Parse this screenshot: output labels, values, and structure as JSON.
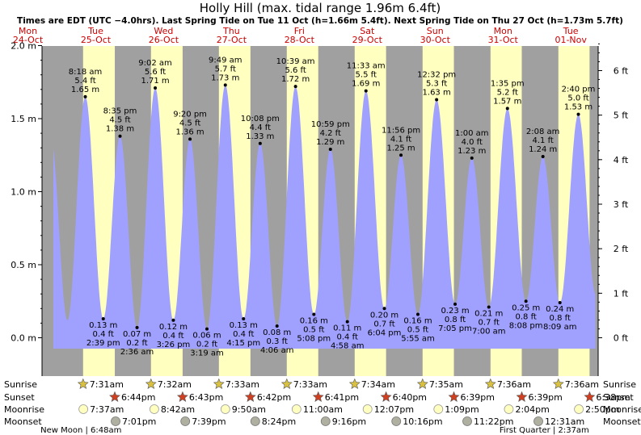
{
  "title": "Holly Hill (max. tidal range 1.96m 6.4ft)",
  "subtitle": "Times are EDT (UTC −4.0hrs). Last Spring Tide on Tue 11 Oct (h=1.66m 5.4ft). Next Spring Tide on Thu 27 Oct (h=1.73m 5.7ft)",
  "colors": {
    "night": "#a0a0a0",
    "day": "#ffffc0",
    "tide": "#a0a0ff",
    "red": "#cc0000"
  },
  "days": [
    {
      "dow": "Mon",
      "date": "24-Oct",
      "start": "2022-10-24T00:00"
    },
    {
      "dow": "Tue",
      "date": "25-Oct",
      "start": "2022-10-25T00:00"
    },
    {
      "dow": "Wed",
      "date": "26-Oct",
      "start": "2022-10-26T00:00"
    },
    {
      "dow": "Thu",
      "date": "27-Oct",
      "start": "2022-10-27T00:00"
    },
    {
      "dow": "Fri",
      "date": "28-Oct",
      "start": "2022-10-28T00:00"
    },
    {
      "dow": "Sat",
      "date": "29-Oct",
      "start": "2022-10-29T00:00"
    },
    {
      "dow": "Sun",
      "date": "30-Oct",
      "start": "2022-10-30T00:00"
    },
    {
      "dow": "Mon",
      "date": "31-Oct",
      "start": "2022-10-31T00:00"
    },
    {
      "dow": "Tue",
      "date": "01-Nov",
      "start": "2022-11-01T00:00"
    }
  ],
  "chart_data": {
    "type": "area",
    "title": "Holly Hill (max. tidal range 1.96m 6.4ft)",
    "xrange": [
      "2022-10-24T17:00",
      "2022-11-01T21:40"
    ],
    "ylim_m": [
      -0.08,
      2.05
    ],
    "y_ticks_m": [
      "0.0 m",
      "0.5 m",
      "1.0 m",
      "1.5 m",
      "2.0 m"
    ],
    "y_ticks_ft": [
      "0 ft",
      "1 ft",
      "2 ft",
      "3 ft",
      "4 ft",
      "5 ft",
      "6 ft"
    ],
    "series": [
      {
        "points": [
          {
            "t": "2022-10-24T20:00",
            "m": 1.38,
            "label": false
          },
          {
            "t": "2022-10-25T02:00",
            "m": 0.12,
            "label": false
          },
          {
            "t": "2022-10-25T08:18",
            "m": 1.65,
            "time": "8:18 am",
            "ft": "5.4 ft",
            "mlabel": "1.65 m"
          },
          {
            "t": "2022-10-25T14:39",
            "m": 0.13,
            "time": "2:39 pm",
            "ft": "0.4 ft",
            "mlabel": "0.13 m"
          },
          {
            "t": "2022-10-25T20:35",
            "m": 1.38,
            "time": "8:35 pm",
            "ft": "4.5 ft",
            "mlabel": "1.38 m"
          },
          {
            "t": "2022-10-26T02:36",
            "m": 0.07,
            "time": "2:36 am",
            "ft": "0.2 ft",
            "mlabel": "0.07 m"
          },
          {
            "t": "2022-10-26T09:02",
            "m": 1.71,
            "time": "9:02 am",
            "ft": "5.6 ft",
            "mlabel": "1.71 m"
          },
          {
            "t": "2022-10-26T15:26",
            "m": 0.12,
            "time": "3:26 pm",
            "ft": "0.4 ft",
            "mlabel": "0.12 m"
          },
          {
            "t": "2022-10-26T21:20",
            "m": 1.36,
            "time": "9:20 pm",
            "ft": "4.5 ft",
            "mlabel": "1.36 m"
          },
          {
            "t": "2022-10-27T03:19",
            "m": 0.06,
            "time": "3:19 am",
            "ft": "0.2 ft",
            "mlabel": "0.06 m"
          },
          {
            "t": "2022-10-27T09:49",
            "m": 1.73,
            "time": "9:49 am",
            "ft": "5.7 ft",
            "mlabel": "1.73 m"
          },
          {
            "t": "2022-10-27T16:15",
            "m": 0.13,
            "time": "4:15 pm",
            "ft": "0.4 ft",
            "mlabel": "0.13 m"
          },
          {
            "t": "2022-10-27T22:08",
            "m": 1.33,
            "time": "10:08 pm",
            "ft": "4.4 ft",
            "mlabel": "1.33 m"
          },
          {
            "t": "2022-10-28T04:06",
            "m": 0.08,
            "time": "4:06 am",
            "ft": "0.3 ft",
            "mlabel": "0.08 m"
          },
          {
            "t": "2022-10-28T10:39",
            "m": 1.72,
            "time": "10:39 am",
            "ft": "5.6 ft",
            "mlabel": "1.72 m"
          },
          {
            "t": "2022-10-28T17:08",
            "m": 0.16,
            "time": "5:08 pm",
            "ft": "0.5 ft",
            "mlabel": "0.16 m"
          },
          {
            "t": "2022-10-28T22:59",
            "m": 1.29,
            "time": "10:59 pm",
            "ft": "4.2 ft",
            "mlabel": "1.29 m"
          },
          {
            "t": "2022-10-29T04:58",
            "m": 0.11,
            "time": "4:58 am",
            "ft": "0.4 ft",
            "mlabel": "0.11 m"
          },
          {
            "t": "2022-10-29T11:33",
            "m": 1.69,
            "time": "11:33 am",
            "ft": "5.5 ft",
            "mlabel": "1.69 m"
          },
          {
            "t": "2022-10-29T18:04",
            "m": 0.2,
            "time": "6:04 pm",
            "ft": "0.7 ft",
            "mlabel": "0.20 m"
          },
          {
            "t": "2022-10-29T23:56",
            "m": 1.25,
            "time": "11:56 pm",
            "ft": "4.1 ft",
            "mlabel": "1.25 m"
          },
          {
            "t": "2022-10-30T05:55",
            "m": 0.16,
            "time": "5:55 am",
            "ft": "0.5 ft",
            "mlabel": "0.16 m"
          },
          {
            "t": "2022-10-30T12:32",
            "m": 1.63,
            "time": "12:32 pm",
            "ft": "5.3 ft",
            "mlabel": "1.63 m"
          },
          {
            "t": "2022-10-30T19:05",
            "m": 0.23,
            "time": "7:05 pm",
            "ft": "0.8 ft",
            "mlabel": "0.23 m"
          },
          {
            "t": "2022-10-31T01:00",
            "m": 1.23,
            "time": "1:00 am",
            "ft": "4.0 ft",
            "mlabel": "1.23 m"
          },
          {
            "t": "2022-10-31T07:00",
            "m": 0.21,
            "time": "7:00 am",
            "ft": "0.7 ft",
            "mlabel": "0.21 m"
          },
          {
            "t": "2022-10-31T13:35",
            "m": 1.57,
            "time": "1:35 pm",
            "ft": "5.2 ft",
            "mlabel": "1.57 m"
          },
          {
            "t": "2022-10-31T20:08",
            "m": 0.25,
            "time": "8:08 pm",
            "ft": "0.8 ft",
            "mlabel": "0.25 m"
          },
          {
            "t": "2022-11-01T02:08",
            "m": 1.24,
            "time": "2:08 am",
            "ft": "4.1 ft",
            "mlabel": "1.24 m"
          },
          {
            "t": "2022-11-01T08:09",
            "m": 0.24,
            "time": "8:09 am",
            "ft": "0.8 ft",
            "mlabel": "0.24 m"
          },
          {
            "t": "2022-11-01T14:40",
            "m": 1.53,
            "time": "2:40 pm",
            "ft": "5.0 ft",
            "mlabel": "1.53 m"
          },
          {
            "t": "2022-11-01T20:45",
            "m": 0.3,
            "label": false
          }
        ]
      }
    ]
  },
  "sun_moon": {
    "labels": {
      "sunrise": "Sunrise",
      "sunset": "Sunset",
      "moonrise": "Moonrise",
      "moonset": "Moonset"
    },
    "sunrise": [
      {
        "t": "2022-10-25T07:31",
        "label": "7:31am"
      },
      {
        "t": "2022-10-26T07:32",
        "label": "7:32am"
      },
      {
        "t": "2022-10-27T07:33",
        "label": "7:33am"
      },
      {
        "t": "2022-10-28T07:33",
        "label": "7:33am"
      },
      {
        "t": "2022-10-29T07:34",
        "label": "7:34am"
      },
      {
        "t": "2022-10-30T07:35",
        "label": "7:35am"
      },
      {
        "t": "2022-10-31T07:36",
        "label": "7:36am"
      },
      {
        "t": "2022-11-01T07:36",
        "label": "7:36am"
      }
    ],
    "sunset": [
      {
        "t": "2022-10-25T18:44",
        "label": "6:44pm"
      },
      {
        "t": "2022-10-26T18:43",
        "label": "6:43pm"
      },
      {
        "t": "2022-10-27T18:42",
        "label": "6:42pm"
      },
      {
        "t": "2022-10-28T18:41",
        "label": "6:41pm"
      },
      {
        "t": "2022-10-29T18:40",
        "label": "6:40pm"
      },
      {
        "t": "2022-10-30T18:39",
        "label": "6:39pm"
      },
      {
        "t": "2022-10-31T18:39",
        "label": "6:39pm"
      },
      {
        "t": "2022-11-01T18:38",
        "label": "6:38pm"
      }
    ],
    "moonrise": [
      {
        "t": "2022-10-25T07:37",
        "label": "7:37am"
      },
      {
        "t": "2022-10-26T08:42",
        "label": "8:42am"
      },
      {
        "t": "2022-10-27T09:50",
        "label": "9:50am"
      },
      {
        "t": "2022-10-28T11:00",
        "label": "11:00am"
      },
      {
        "t": "2022-10-29T12:07",
        "label": "12:07pm"
      },
      {
        "t": "2022-10-30T13:09",
        "label": "1:09pm"
      },
      {
        "t": "2022-10-31T14:04",
        "label": "2:04pm"
      },
      {
        "t": "2022-11-01T14:50",
        "label": "2:50pm"
      }
    ],
    "moonset": [
      {
        "t": "2022-10-25T19:01",
        "label": "7:01pm"
      },
      {
        "t": "2022-10-26T19:39",
        "label": "7:39pm"
      },
      {
        "t": "2022-10-27T20:24",
        "label": "8:24pm"
      },
      {
        "t": "2022-10-28T21:16",
        "label": "9:16pm"
      },
      {
        "t": "2022-10-29T22:16",
        "label": "10:16pm"
      },
      {
        "t": "2022-10-30T23:22",
        "label": "11:22pm"
      },
      {
        "t": "2022-11-01T00:31",
        "label": "12:31am"
      }
    ],
    "phases": [
      {
        "t": "2022-10-25T06:48",
        "label": "New Moon | 6:48am"
      },
      {
        "t": "2022-11-01T02:37",
        "label": "First Quarter | 2:37am"
      }
    ]
  }
}
